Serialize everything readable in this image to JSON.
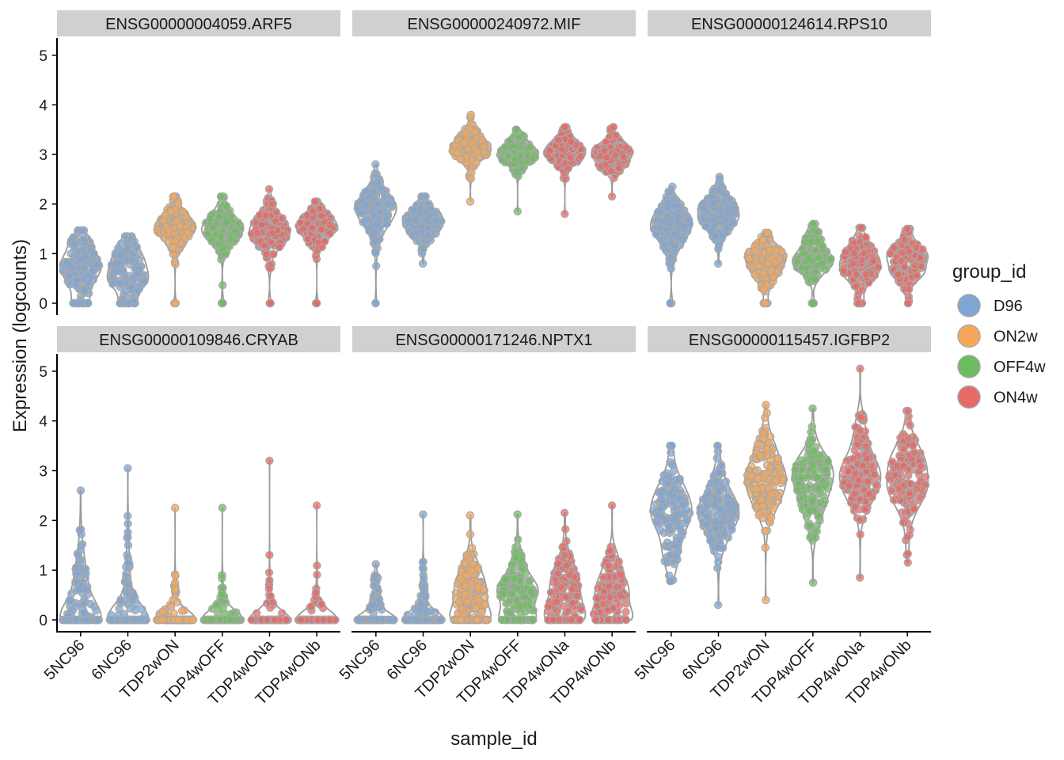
{
  "chart_data": {
    "type": "violin-beeswarm",
    "xlabel": "sample_id",
    "ylabel": "Expression (logcounts)",
    "ylim": [
      0,
      5.3
    ],
    "y_ticks": [
      "0",
      "1",
      "2",
      "3",
      "4",
      "5"
    ],
    "categories": [
      "5NC96",
      "6NC96",
      "TDP2wON",
      "TDP4wOFF",
      "TDP4wONa",
      "TDP4wONb"
    ],
    "category_groups": [
      "D96",
      "D96",
      "ON2w",
      "OFF4w",
      "ON4w",
      "ON4w"
    ],
    "legend": {
      "title": "group_id",
      "items": [
        {
          "label": "D96",
          "color": "#7ea6d4"
        },
        {
          "label": "ON2w",
          "color": "#f6a75a"
        },
        {
          "label": "OFF4w",
          "color": "#6cbd5e"
        },
        {
          "label": "ON4w",
          "color": "#e76a66"
        }
      ]
    },
    "panels": [
      {
        "title": "ENSG00000004059.ARF5",
        "series": [
          {
            "sample": "5NC96",
            "median": 0.8,
            "spread": 0.35,
            "min": 0.0,
            "max": 1.47,
            "zero_fraction": 0.12
          },
          {
            "sample": "6NC96",
            "median": 0.7,
            "spread": 0.3,
            "min": 0.0,
            "max": 1.35,
            "zero_fraction": 0.06
          },
          {
            "sample": "TDP2wON",
            "median": 1.5,
            "spread": 0.25,
            "min": 0.0,
            "max": 2.15,
            "zero_fraction": 0.01
          },
          {
            "sample": "TDP4wOFF",
            "median": 1.45,
            "spread": 0.27,
            "min": 0.0,
            "max": 2.15,
            "zero_fraction": 0.01
          },
          {
            "sample": "TDP4wONa",
            "median": 1.5,
            "spread": 0.27,
            "min": 0.0,
            "max": 2.3,
            "zero_fraction": 0.01
          },
          {
            "sample": "TDP4wONb",
            "median": 1.5,
            "spread": 0.25,
            "min": 0.0,
            "max": 2.05,
            "zero_fraction": 0.01
          }
        ]
      },
      {
        "title": "ENSG00000240972.MIF",
        "series": [
          {
            "sample": "5NC96",
            "median": 1.85,
            "spread": 0.35,
            "min": 0.0,
            "max": 2.8,
            "zero_fraction": 0.01
          },
          {
            "sample": "6NC96",
            "median": 1.6,
            "spread": 0.25,
            "min": 0.8,
            "max": 2.15,
            "zero_fraction": 0.0
          },
          {
            "sample": "TDP2wON",
            "median": 3.1,
            "spread": 0.22,
            "min": 2.05,
            "max": 3.8,
            "zero_fraction": 0.0
          },
          {
            "sample": "TDP4wOFF",
            "median": 3.0,
            "spread": 0.2,
            "min": 1.85,
            "max": 3.5,
            "zero_fraction": 0.0
          },
          {
            "sample": "TDP4wONa",
            "median": 3.05,
            "spread": 0.22,
            "min": 1.8,
            "max": 3.55,
            "zero_fraction": 0.0
          },
          {
            "sample": "TDP4wONb",
            "median": 3.0,
            "spread": 0.22,
            "min": 2.15,
            "max": 3.55,
            "zero_fraction": 0.0
          }
        ]
      },
      {
        "title": "ENSG00000124614.RPS10",
        "series": [
          {
            "sample": "5NC96",
            "median": 1.6,
            "spread": 0.3,
            "min": 0.0,
            "max": 2.35,
            "zero_fraction": 0.01
          },
          {
            "sample": "6NC96",
            "median": 1.8,
            "spread": 0.25,
            "min": 0.8,
            "max": 2.55,
            "zero_fraction": 0.0
          },
          {
            "sample": "TDP2wON",
            "median": 0.85,
            "spread": 0.28,
            "min": 0.0,
            "max": 1.42,
            "zero_fraction": 0.02
          },
          {
            "sample": "TDP4wOFF",
            "median": 0.95,
            "spread": 0.27,
            "min": 0.0,
            "max": 1.6,
            "zero_fraction": 0.02
          },
          {
            "sample": "TDP4wONa",
            "median": 0.8,
            "spread": 0.3,
            "min": 0.0,
            "max": 1.52,
            "zero_fraction": 0.03
          },
          {
            "sample": "TDP4wONb",
            "median": 0.85,
            "spread": 0.28,
            "min": 0.0,
            "max": 1.5,
            "zero_fraction": 0.02
          }
        ]
      },
      {
        "title": "ENSG00000109846.CRYAB",
        "series": [
          {
            "sample": "5NC96",
            "median": 0.4,
            "spread": 0.7,
            "min": 0.0,
            "max": 2.6,
            "zero_fraction": 0.45
          },
          {
            "sample": "6NC96",
            "median": 0.3,
            "spread": 0.6,
            "min": 0.0,
            "max": 3.05,
            "zero_fraction": 0.55
          },
          {
            "sample": "TDP2wON",
            "median": 0.2,
            "spread": 0.4,
            "min": 0.0,
            "max": 2.25,
            "zero_fraction": 0.8
          },
          {
            "sample": "TDP4wOFF",
            "median": 0.2,
            "spread": 0.4,
            "min": 0.0,
            "max": 2.25,
            "zero_fraction": 0.82
          },
          {
            "sample": "TDP4wONa",
            "median": 0.2,
            "spread": 0.4,
            "min": 0.0,
            "max": 3.2,
            "zero_fraction": 0.8
          },
          {
            "sample": "TDP4wONb",
            "median": 0.2,
            "spread": 0.4,
            "min": 0.0,
            "max": 2.3,
            "zero_fraction": 0.82
          }
        ]
      },
      {
        "title": "ENSG00000171246.NPTX1",
        "series": [
          {
            "sample": "5NC96",
            "median": 0.3,
            "spread": 0.3,
            "min": 0.0,
            "max": 1.12,
            "zero_fraction": 0.7
          },
          {
            "sample": "6NC96",
            "median": 0.3,
            "spread": 0.35,
            "min": 0.0,
            "max": 2.12,
            "zero_fraction": 0.65
          },
          {
            "sample": "TDP2wON",
            "median": 0.55,
            "spread": 0.4,
            "min": 0.0,
            "max": 2.1,
            "zero_fraction": 0.15
          },
          {
            "sample": "TDP4wOFF",
            "median": 0.6,
            "spread": 0.4,
            "min": 0.0,
            "max": 2.12,
            "zero_fraction": 0.15
          },
          {
            "sample": "TDP4wONa",
            "median": 0.55,
            "spread": 0.42,
            "min": 0.0,
            "max": 2.15,
            "zero_fraction": 0.15
          },
          {
            "sample": "TDP4wONb",
            "median": 0.5,
            "spread": 0.42,
            "min": 0.0,
            "max": 2.3,
            "zero_fraction": 0.18
          }
        ]
      },
      {
        "title": "ENSG00000115457.IGFBP2",
        "series": [
          {
            "sample": "5NC96",
            "median": 2.2,
            "spread": 0.55,
            "min": 0.78,
            "max": 3.5,
            "zero_fraction": 0.0
          },
          {
            "sample": "6NC96",
            "median": 2.2,
            "spread": 0.5,
            "min": 0.3,
            "max": 3.5,
            "zero_fraction": 0.0
          },
          {
            "sample": "TDP2wON",
            "median": 2.85,
            "spread": 0.5,
            "min": 0.4,
            "max": 4.32,
            "zero_fraction": 0.0
          },
          {
            "sample": "TDP4wOFF",
            "median": 2.75,
            "spread": 0.5,
            "min": 0.75,
            "max": 4.25,
            "zero_fraction": 0.0
          },
          {
            "sample": "TDP4wONa",
            "median": 2.95,
            "spread": 0.5,
            "min": 0.85,
            "max": 5.05,
            "zero_fraction": 0.0
          },
          {
            "sample": "TDP4wONb",
            "median": 2.85,
            "spread": 0.5,
            "min": 1.15,
            "max": 4.2,
            "zero_fraction": 0.0
          }
        ]
      }
    ]
  }
}
